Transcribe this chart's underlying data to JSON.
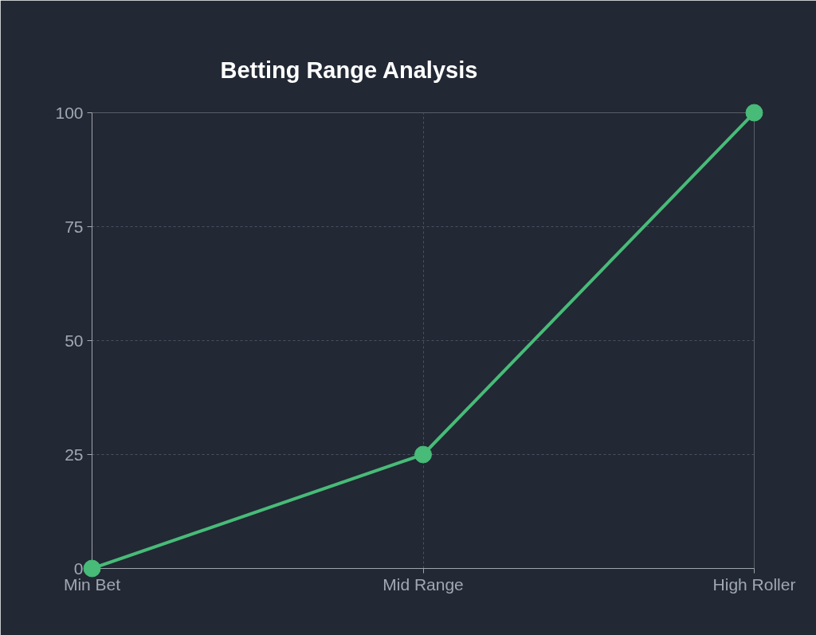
{
  "chart_data": {
    "type": "line",
    "title": "Betting Range Analysis",
    "categories": [
      "Min Bet",
      "Mid Range",
      "High Roller"
    ],
    "series": [
      {
        "color": "#48bb78",
        "values": [
          0,
          25,
          100
        ]
      }
    ],
    "ylim": [
      0,
      100
    ],
    "yticks": [
      0,
      25,
      50,
      75,
      100
    ],
    "grid": true,
    "marker": "circle",
    "line_style": "solid"
  }
}
